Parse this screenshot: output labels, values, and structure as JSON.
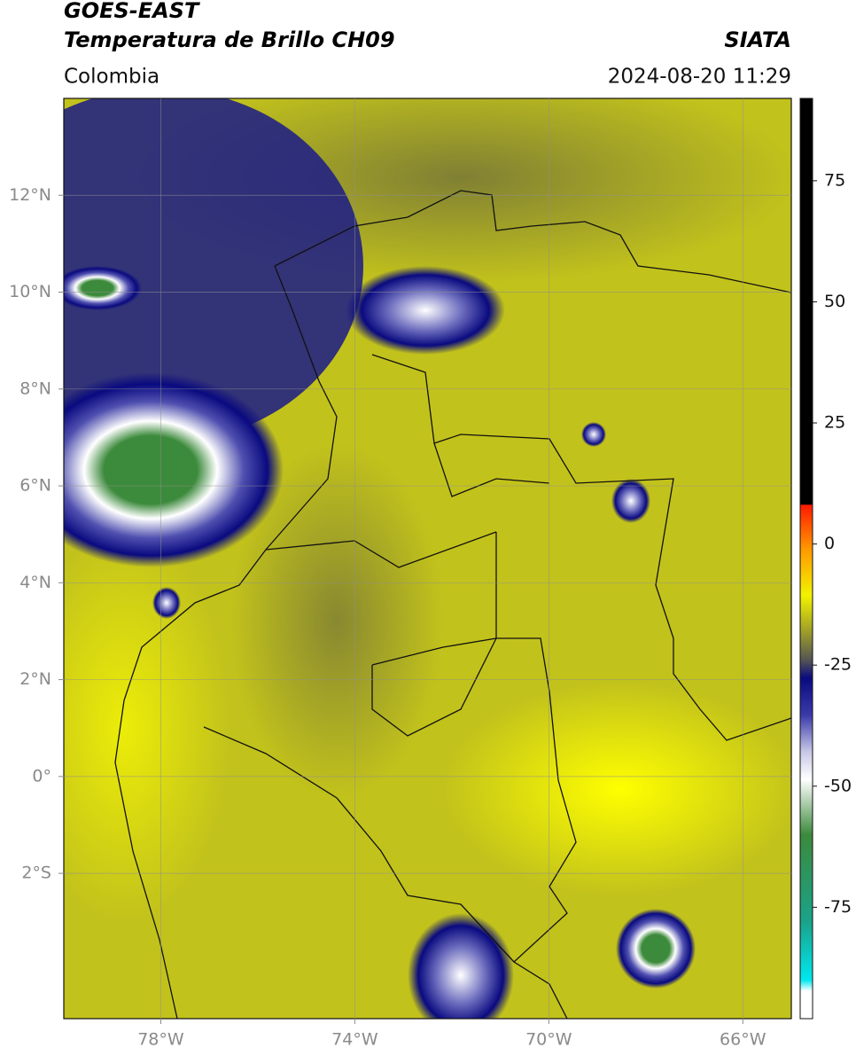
{
  "header": {
    "title": "GOES-EAST",
    "subtitle": "Temperatura de Brillo CH09",
    "agency": "SIATA",
    "region": "Colombia",
    "datetime": "2024-08-20 11:29"
  },
  "map": {
    "xlim": [
      -80,
      -65
    ],
    "ylim": [
      -5,
      14
    ],
    "grid": true,
    "xticks": [
      {
        "value": -78,
        "label": "78°W"
      },
      {
        "value": -74,
        "label": "74°W"
      },
      {
        "value": -70,
        "label": "70°W"
      },
      {
        "value": -66,
        "label": "66°W"
      }
    ],
    "yticks": [
      {
        "value": 12,
        "label": "12°N"
      },
      {
        "value": 10,
        "label": "10°N"
      },
      {
        "value": 8,
        "label": "8°N"
      },
      {
        "value": 6,
        "label": "6°N"
      },
      {
        "value": 4,
        "label": "4°N"
      },
      {
        "value": 2,
        "label": "2°N"
      },
      {
        "value": 0,
        "label": "0°"
      },
      {
        "value": -2,
        "label": "2°S"
      }
    ]
  },
  "colorbar": {
    "ylim": [
      -98,
      92
    ],
    "ticks": [
      75,
      50,
      25,
      0,
      -25,
      -50,
      -75
    ]
  }
}
